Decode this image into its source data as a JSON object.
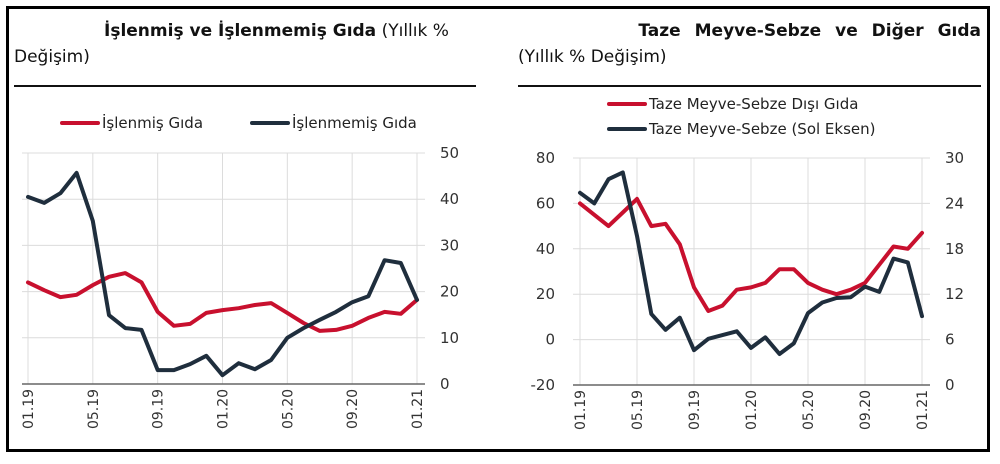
{
  "colors": {
    "red": "#c8102e",
    "dark": "#1f2e3d",
    "grid": "#dcdcdc",
    "axis": "#555555",
    "text": "#333333"
  },
  "left_panel": {
    "title_bold": "İşlenmiş ve İşlenmemiş Gıda",
    "title_rest": " (Yıllık % Değişim)",
    "legend": [
      "İşlenmiş Gıda",
      "İşlenmemiş Gıda"
    ]
  },
  "right_panel": {
    "title_bold": "Taze Meyve-Sebze ve Diğer Gıda",
    "title_rest": "(Yıllık % Değişim)",
    "legend": [
      "Taze Meyve-Sebze Dışı Gıda",
      "Taze Meyve-Sebze (Sol Eksen)"
    ]
  },
  "chart_data": [
    {
      "type": "line",
      "title": "İşlenmiş ve İşlenmemiş Gıda (Yıllık % Değişim)",
      "xlabel": "",
      "ylabel": "",
      "x": [
        "01.19",
        "02.19",
        "03.19",
        "04.19",
        "05.19",
        "06.19",
        "07.19",
        "08.19",
        "09.19",
        "10.19",
        "11.19",
        "12.19",
        "01.20",
        "02.20",
        "03.20",
        "04.20",
        "05.20",
        "06.20",
        "07.20",
        "08.20",
        "09.20",
        "10.20",
        "11.20",
        "12.20",
        "01.21"
      ],
      "x_tick_labels": [
        "01.19",
        "05.19",
        "09.19",
        "01.20",
        "05.20",
        "09.20",
        "01.21"
      ],
      "y_axis_side": "right",
      "ylim": [
        0,
        50
      ],
      "y_ticks": [
        0,
        10,
        20,
        30,
        40,
        50
      ],
      "grid": true,
      "legend_position": "top",
      "series": [
        {
          "name": "İşlenmiş Gıda",
          "color": "#c8102e",
          "values": [
            22.0,
            20.3,
            18.8,
            19.3,
            21.4,
            23.2,
            24.0,
            22.0,
            15.6,
            12.6,
            13.0,
            15.4,
            16.0,
            16.4,
            17.1,
            17.5,
            15.4,
            13.2,
            11.5,
            11.7,
            12.6,
            14.3,
            15.6,
            15.2,
            18.2
          ]
        },
        {
          "name": "İşlenmemiş Gıda",
          "color": "#1f2e3d",
          "values": [
            40.5,
            39.2,
            41.3,
            45.7,
            35.3,
            14.9,
            12.1,
            11.7,
            3.0,
            3.0,
            4.3,
            6.1,
            1.9,
            4.5,
            3.2,
            5.2,
            10.0,
            12.1,
            13.9,
            15.6,
            17.7,
            19.0,
            26.8,
            26.2,
            18.2
          ]
        }
      ]
    },
    {
      "type": "line",
      "title": "Taze Meyve-Sebze ve Diğer Gıda (Yıllık % Değişim)",
      "xlabel": "",
      "ylabel": "",
      "x": [
        "01.19",
        "02.19",
        "03.19",
        "04.19",
        "05.19",
        "06.19",
        "07.19",
        "08.19",
        "09.19",
        "10.19",
        "11.19",
        "12.19",
        "01.20",
        "02.20",
        "03.20",
        "04.20",
        "05.20",
        "06.20",
        "07.20",
        "08.20",
        "09.20",
        "10.20",
        "11.20",
        "12.20",
        "01.21"
      ],
      "x_tick_labels": [
        "01.19",
        "05.19",
        "09.19",
        "01.20",
        "05.20",
        "09.20",
        "01.21"
      ],
      "ylim_left": [
        -20,
        80
      ],
      "y_ticks_left": [
        -20,
        0,
        20,
        40,
        60,
        80
      ],
      "ylim_right": [
        0,
        30
      ],
      "y_ticks_right": [
        0,
        6,
        12,
        18,
        24,
        30
      ],
      "grid": true,
      "legend_position": "top",
      "series": [
        {
          "name": "Taze Meyve-Sebze Dışı Gıda",
          "color": "#c8102e",
          "axis": "right",
          "values": [
            60,
            55,
            50,
            56,
            62,
            50,
            51,
            42,
            23,
            12.6,
            15,
            22,
            23,
            25,
            31,
            31,
            25,
            22,
            20,
            22,
            25,
            33,
            41,
            40,
            47
          ],
          "note": "values expressed on left-axis scale as drawn"
        },
        {
          "name": "Taze Meyve-Sebze (Sol Eksen)",
          "color": "#1f2e3d",
          "axis": "right-scale-drawn",
          "values": [
            25.4,
            24.0,
            27.2,
            28.1,
            19.7,
            9.4,
            7.3,
            8.9,
            4.6,
            6.1,
            6.6,
            7.1,
            4.9,
            6.3,
            4.1,
            5.5,
            9.5,
            10.9,
            11.5,
            11.6,
            13.0,
            12.3,
            16.7,
            16.2,
            9.1
          ]
        }
      ]
    }
  ]
}
